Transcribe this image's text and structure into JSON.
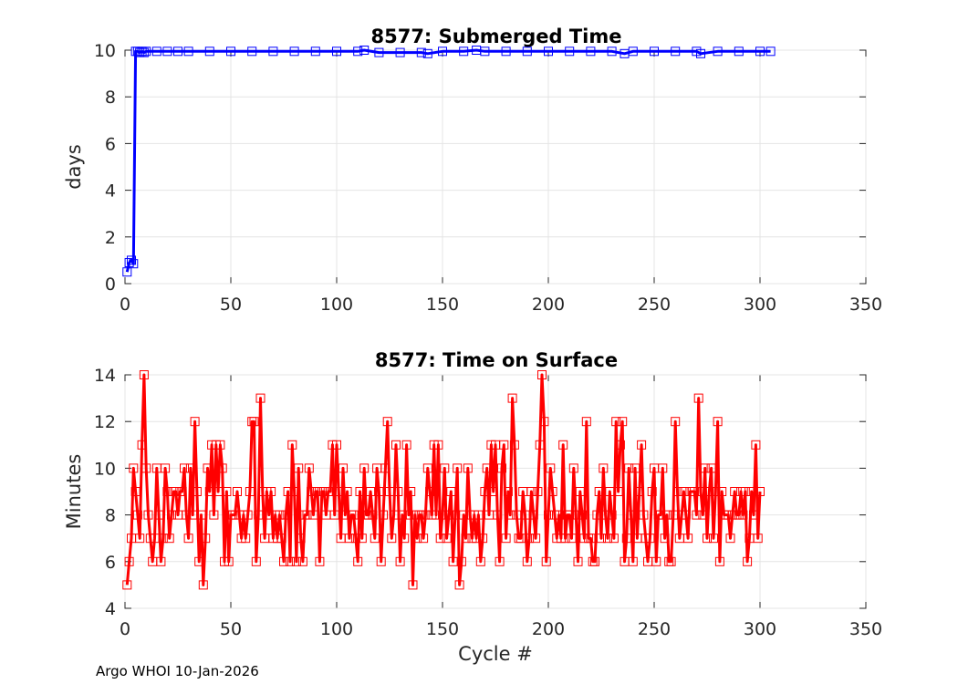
{
  "footer": "Argo WHOI 10-Jan-2026",
  "chart_data": [
    {
      "type": "line",
      "title": "8577: Submerged Time",
      "xlabel": "",
      "ylabel": "days",
      "xlim": [
        0,
        350
      ],
      "ylim": [
        0,
        10
      ],
      "xticks": [
        0,
        50,
        100,
        150,
        200,
        250,
        300,
        350
      ],
      "yticks": [
        0,
        2,
        4,
        6,
        8,
        10
      ],
      "grid": true,
      "color": "#0000ff",
      "marker": "square",
      "series": [
        {
          "x": [
            1,
            2,
            3,
            4,
            5,
            6,
            7,
            8,
            9,
            10,
            15,
            20,
            25,
            30,
            40,
            50,
            60,
            70,
            80,
            90,
            100,
            110,
            113,
            120,
            130,
            140,
            143,
            150,
            160,
            166,
            170,
            180,
            190,
            200,
            210,
            220,
            230,
            236,
            240,
            250,
            260,
            270,
            272,
            280,
            290,
            300,
            305
          ],
          "y": [
            0.5,
            0.9,
            1.0,
            0.85,
            9.95,
            9.95,
            9.9,
            9.95,
            9.9,
            9.95,
            9.95,
            9.95,
            9.95,
            9.95,
            9.95,
            9.95,
            9.95,
            9.95,
            9.95,
            9.95,
            9.95,
            9.95,
            10.0,
            9.9,
            9.9,
            9.9,
            9.85,
            9.95,
            9.95,
            10.0,
            9.95,
            9.95,
            9.95,
            9.95,
            9.95,
            9.95,
            9.95,
            9.85,
            9.95,
            9.95,
            9.95,
            9.95,
            9.85,
            9.95,
            9.95,
            9.95,
            9.95
          ]
        }
      ]
    },
    {
      "type": "line",
      "title": "8577: Time on Surface",
      "xlabel": "Cycle #",
      "ylabel": "Minutes",
      "xlim": [
        0,
        350
      ],
      "ylim": [
        4,
        14
      ],
      "xticks": [
        0,
        50,
        100,
        150,
        200,
        250,
        300,
        350
      ],
      "yticks": [
        4,
        6,
        8,
        10,
        12,
        14
      ],
      "grid": true,
      "color": "#ff0000",
      "marker": "square",
      "series": [
        {
          "x_start": 1,
          "y": [
            5,
            6,
            7,
            10,
            9,
            8,
            7,
            11,
            14,
            10,
            8,
            7,
            6,
            7,
            10,
            8,
            6,
            7,
            10,
            9,
            7,
            8,
            9,
            9,
            8,
            9,
            9,
            10,
            8,
            7,
            10,
            8,
            12,
            9,
            6,
            8,
            5,
            7,
            10,
            9,
            11,
            8,
            11,
            9,
            11,
            10,
            6,
            9,
            6,
            8,
            8,
            8,
            9,
            8,
            7,
            8,
            7,
            8,
            9,
            12,
            12,
            6,
            8,
            13,
            9,
            7,
            9,
            8,
            9,
            7,
            8,
            7,
            8,
            7,
            6,
            8,
            9,
            6,
            11,
            9,
            6,
            10,
            7,
            6,
            8,
            8,
            10,
            9,
            8,
            9,
            9,
            6,
            9,
            9,
            8,
            9,
            9,
            11,
            8,
            11,
            9,
            7,
            10,
            8,
            9,
            7,
            8,
            8,
            7,
            6,
            9,
            7,
            10,
            8,
            8,
            9,
            8,
            7,
            10,
            9,
            6,
            8,
            10,
            12,
            9,
            7,
            8,
            11,
            9,
            6,
            8,
            7,
            11,
            8,
            9,
            5,
            8,
            7,
            8,
            8,
            7,
            8,
            10,
            9,
            8,
            11,
            8,
            11,
            7,
            8,
            10,
            7,
            8,
            9,
            6,
            8,
            10,
            5,
            6,
            8,
            7,
            10,
            8,
            7,
            8,
            7,
            8,
            6,
            7,
            9,
            10,
            8,
            11,
            9,
            11,
            8,
            6,
            10,
            11,
            7,
            9,
            8,
            13,
            11,
            8,
            7,
            7,
            9,
            8,
            6,
            7,
            9,
            8,
            7,
            9,
            11,
            14,
            12,
            6,
            8,
            10,
            9,
            8,
            7,
            8,
            7,
            11,
            7,
            8,
            8,
            7,
            10,
            8,
            6,
            9,
            8,
            7,
            12,
            7,
            7,
            6,
            6,
            8,
            9,
            7,
            10,
            8,
            7,
            9,
            8,
            7,
            12,
            9,
            11,
            12,
            6,
            7,
            10,
            8,
            6,
            10,
            7,
            9,
            11,
            8,
            7,
            6,
            7,
            9,
            10,
            6,
            8,
            8,
            10,
            7,
            8,
            6,
            6,
            8,
            12,
            9,
            7,
            8,
            9,
            8,
            7,
            9,
            9,
            9,
            8,
            13,
            9,
            8,
            10,
            7,
            9,
            10,
            7,
            9,
            12,
            6,
            9,
            8,
            8,
            8,
            7,
            8,
            9,
            8,
            8,
            9,
            8,
            9,
            6,
            7,
            9,
            8,
            11,
            7,
            9
          ]
        }
      ]
    }
  ]
}
